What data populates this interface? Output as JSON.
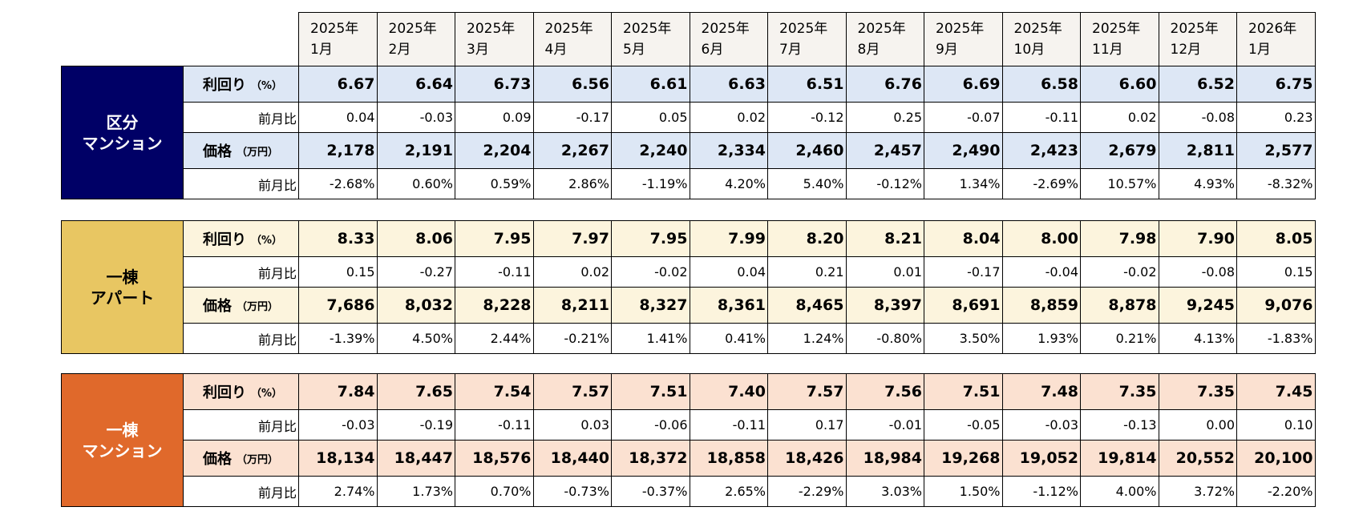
{
  "header": {
    "months": [
      {
        "year": "2025年",
        "month": "1月"
      },
      {
        "year": "2025年",
        "month": "2月"
      },
      {
        "year": "2025年",
        "month": "3月"
      },
      {
        "year": "2025年",
        "month": "4月"
      },
      {
        "year": "2025年",
        "month": "5月"
      },
      {
        "year": "2025年",
        "month": "6月"
      },
      {
        "year": "2025年",
        "month": "7月"
      },
      {
        "year": "2025年",
        "month": "8月"
      },
      {
        "year": "2025年",
        "month": "9月"
      },
      {
        "year": "2025年",
        "month": "10月"
      },
      {
        "year": "2025年",
        "month": "11月"
      },
      {
        "year": "2025年",
        "month": "12月"
      },
      {
        "year": "2026年",
        "month": "1月"
      }
    ]
  },
  "sections": [
    {
      "label": [
        "区分",
        "マンション"
      ],
      "rows": [
        {
          "label": "利回り",
          "unit": "（%）",
          "values": [
            "6.67",
            "6.64",
            "6.73",
            "6.56",
            "6.61",
            "6.63",
            "6.51",
            "6.76",
            "6.69",
            "6.58",
            "6.60",
            "6.52",
            "6.75"
          ]
        },
        {
          "label": "前月比",
          "values": [
            "0.04",
            "-0.03",
            "0.09",
            "-0.17",
            "0.05",
            "0.02",
            "-0.12",
            "0.25",
            "-0.07",
            "-0.11",
            "0.02",
            "-0.08",
            "0.23"
          ]
        },
        {
          "label": "価格",
          "unit": "（万円）",
          "values": [
            "2,178",
            "2,191",
            "2,204",
            "2,267",
            "2,240",
            "2,334",
            "2,460",
            "2,457",
            "2,490",
            "2,423",
            "2,679",
            "2,811",
            "2,577"
          ]
        },
        {
          "label": "前月比",
          "values": [
            "-2.68%",
            "0.60%",
            "0.59%",
            "2.86%",
            "-1.19%",
            "4.20%",
            "5.40%",
            "-0.12%",
            "1.34%",
            "-2.69%",
            "10.57%",
            "4.93%",
            "-8.32%"
          ]
        }
      ]
    },
    {
      "label": [
        "一棟",
        "アパート"
      ],
      "rows": [
        {
          "label": "利回り",
          "unit": "（%）",
          "values": [
            "8.33",
            "8.06",
            "7.95",
            "7.97",
            "7.95",
            "7.99",
            "8.20",
            "8.21",
            "8.04",
            "8.00",
            "7.98",
            "7.90",
            "8.05"
          ]
        },
        {
          "label": "前月比",
          "values": [
            "0.15",
            "-0.27",
            "-0.11",
            "0.02",
            "-0.02",
            "0.04",
            "0.21",
            "0.01",
            "-0.17",
            "-0.04",
            "-0.02",
            "-0.08",
            "0.15"
          ]
        },
        {
          "label": "価格",
          "unit": "（万円）",
          "values": [
            "7,686",
            "8,032",
            "8,228",
            "8,211",
            "8,327",
            "8,361",
            "8,465",
            "8,397",
            "8,691",
            "8,859",
            "8,878",
            "9,245",
            "9,076"
          ]
        },
        {
          "label": "前月比",
          "values": [
            "-1.39%",
            "4.50%",
            "2.44%",
            "-0.21%",
            "1.41%",
            "0.41%",
            "1.24%",
            "-0.80%",
            "3.50%",
            "1.93%",
            "0.21%",
            "4.13%",
            "-1.83%"
          ]
        }
      ]
    },
    {
      "label": [
        "一棟",
        "マンション"
      ],
      "rows": [
        {
          "label": "利回り",
          "unit": "（%）",
          "values": [
            "7.84",
            "7.65",
            "7.54",
            "7.57",
            "7.51",
            "7.40",
            "7.57",
            "7.56",
            "7.51",
            "7.48",
            "7.35",
            "7.35",
            "7.45"
          ]
        },
        {
          "label": "前月比",
          "values": [
            "-0.03",
            "-0.19",
            "-0.11",
            "0.03",
            "-0.06",
            "-0.11",
            "0.17",
            "-0.01",
            "-0.05",
            "-0.03",
            "-0.13",
            "0.00",
            "0.10"
          ]
        },
        {
          "label": "価格",
          "unit": "（万円）",
          "values": [
            "18,134",
            "18,447",
            "18,576",
            "18,440",
            "18,372",
            "18,858",
            "18,426",
            "18,984",
            "19,268",
            "19,052",
            "19,814",
            "20,552",
            "20,100"
          ]
        },
        {
          "label": "前月比",
          "values": [
            "2.74%",
            "1.73%",
            "0.70%",
            "-0.73%",
            "-0.37%",
            "2.65%",
            "-2.29%",
            "3.03%",
            "1.50%",
            "-1.12%",
            "4.00%",
            "3.72%",
            "-2.20%"
          ]
        }
      ]
    }
  ]
}
